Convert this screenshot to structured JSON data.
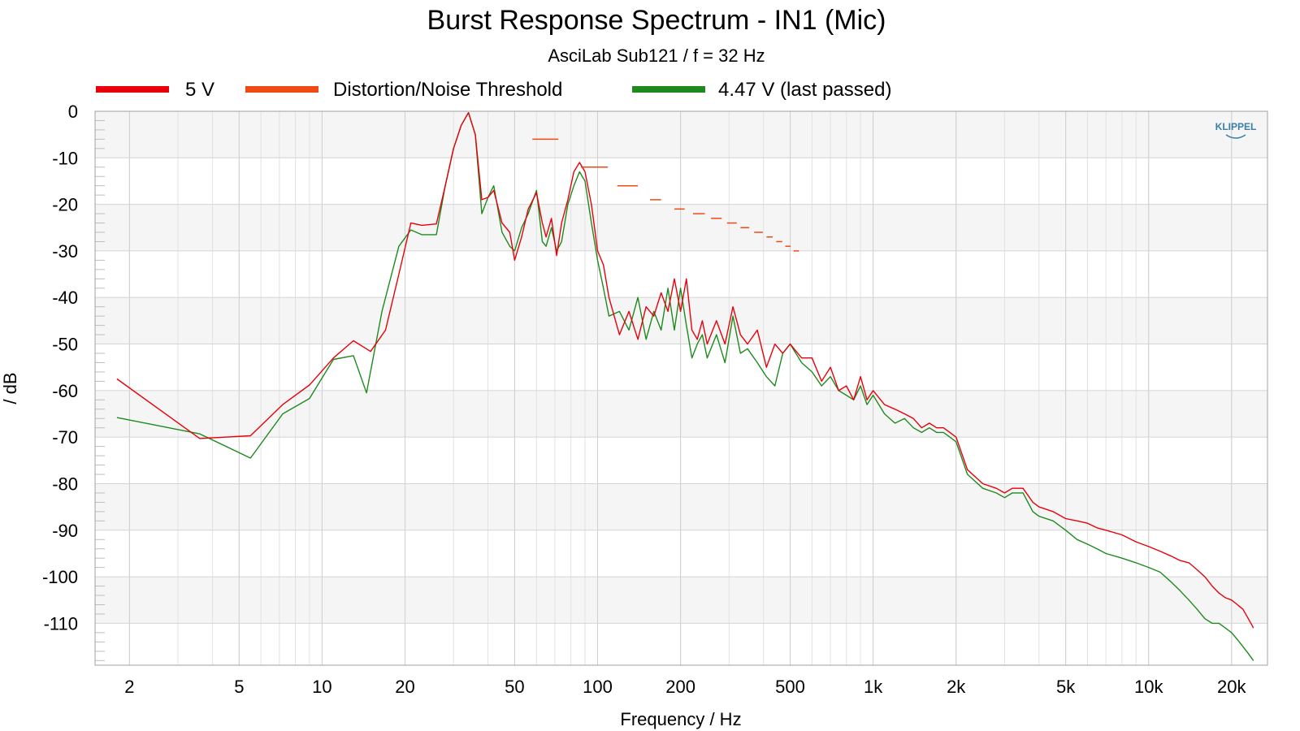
{
  "chart_data": {
    "type": "line",
    "title": "Burst Response Spectrum - IN1 (Mic)",
    "subtitle": "AsciLab Sub121 / f = 32 Hz",
    "xlabel": "Frequency / Hz",
    "ylabel": "/ dB",
    "xscale": "log",
    "xlim": [
      1.5,
      27000
    ],
    "ylim": [
      -119,
      0
    ],
    "xticks": [
      2,
      5,
      10,
      20,
      50,
      100,
      200,
      500,
      1000,
      2000,
      5000,
      10000,
      20000
    ],
    "xtick_labels": [
      "2",
      "5",
      "10",
      "20",
      "50",
      "100",
      "200",
      "500",
      "1k",
      "2k",
      "5k",
      "10k",
      "20k"
    ],
    "yticks": [
      0,
      -10,
      -20,
      -30,
      -40,
      -50,
      -60,
      -70,
      -80,
      -90,
      -100,
      -110
    ],
    "ytick_labels": [
      "0",
      "-10",
      "-20",
      "-30",
      "-40",
      "-50",
      "-60",
      "-70",
      "-80",
      "-90",
      "-100",
      "-110"
    ],
    "grid": true,
    "legend_position": "top",
    "watermark": "KLIPPEL",
    "series": [
      {
        "name": "5 V",
        "color": "#e8000b",
        "x": [
          1.8,
          3.6,
          5.5,
          7.2,
          9,
          11,
          13,
          15,
          17,
          19,
          21,
          23,
          26,
          28,
          30,
          32,
          34,
          36,
          38,
          40,
          42,
          45,
          48,
          50,
          53,
          56,
          60,
          63,
          65,
          68,
          71,
          74,
          78,
          82,
          86,
          90,
          95,
          100,
          105,
          110,
          120,
          130,
          140,
          150,
          160,
          170,
          180,
          190,
          200,
          210,
          220,
          230,
          240,
          250,
          270,
          290,
          310,
          330,
          350,
          380,
          410,
          440,
          470,
          500,
          550,
          600,
          650,
          700,
          750,
          800,
          850,
          900,
          950,
          1000,
          1100,
          1200,
          1300,
          1400,
          1500,
          1600,
          1700,
          1800,
          1900,
          2000,
          2200,
          2500,
          2800,
          3000,
          3200,
          3500,
          3800,
          4000,
          4500,
          5000,
          5500,
          6000,
          6500,
          7000,
          8000,
          9000,
          10000,
          11000,
          12000,
          13000,
          14000,
          15000,
          16000,
          17000,
          18000,
          19000,
          20000,
          21000,
          22000,
          23000,
          24000
        ],
        "values": [
          -57.5,
          -70.3,
          -69.7,
          -63,
          -58.8,
          -53,
          -49.3,
          -51.6,
          -47,
          -35,
          -24,
          -24.5,
          -24.2,
          -16,
          -8,
          -3,
          -0.3,
          -5,
          -19,
          -18.5,
          -17,
          -24,
          -26,
          -32,
          -27,
          -21,
          -17.5,
          -24,
          -27,
          -23,
          -31,
          -24,
          -19,
          -13,
          -11,
          -13,
          -20,
          -30,
          -33,
          -40,
          -48,
          -43,
          -49,
          -42,
          -44,
          -39,
          -43,
          -36,
          -43,
          -36,
          -47,
          -49,
          -45,
          -50,
          -45,
          -50,
          -42,
          -48,
          -50,
          -47,
          -55,
          -50,
          -52,
          -50,
          -53,
          -53,
          -58,
          -55,
          -60,
          -59,
          -62,
          -57,
          -62,
          -60,
          -63,
          -64,
          -65,
          -66,
          -68,
          -67,
          -68,
          -68,
          -69,
          -70,
          -77,
          -80,
          -81,
          -82,
          -81,
          -81,
          -84,
          -85,
          -86,
          -87.5,
          -88,
          -88.5,
          -89.5,
          -90,
          -91,
          -92.5,
          -93.5,
          -94.5,
          -95.5,
          -96.5,
          -97,
          -98.5,
          -100,
          -102,
          -103.5,
          -104.5,
          -105,
          -106,
          -107,
          -109,
          -111
        ]
      },
      {
        "name": "Distortion/Noise Threshold",
        "color": "#f04a14",
        "segments": [
          {
            "x": [
              58,
              72
            ],
            "y": -6
          },
          {
            "x": [
              87,
              109
            ],
            "y": -12
          },
          {
            "x": [
              118,
              140
            ],
            "y": -16
          },
          {
            "x": [
              155,
              170
            ],
            "y": -19
          },
          {
            "x": [
              190,
              207
            ],
            "y": -21
          },
          {
            "x": [
              222,
              245
            ],
            "y": -22
          },
          {
            "x": [
              258,
              282
            ],
            "y": -23
          },
          {
            "x": [
              295,
              320
            ],
            "y": -24
          },
          {
            "x": [
              330,
              355
            ],
            "y": -25
          },
          {
            "x": [
              370,
              398
            ],
            "y": -26
          },
          {
            "x": [
              410,
              432
            ],
            "y": -27
          },
          {
            "x": [
              445,
              468
            ],
            "y": -28
          },
          {
            "x": [
              480,
              502
            ],
            "y": -29
          },
          {
            "x": [
              515,
              538
            ],
            "y": -30
          }
        ]
      },
      {
        "name": "4.47 V (last passed)",
        "color": "#1e8a1e",
        "x": [
          1.8,
          3.6,
          5.5,
          7.2,
          9,
          11,
          13,
          14.5,
          16.5,
          19,
          21,
          23,
          26,
          28,
          30,
          32,
          34,
          36,
          38,
          40,
          42,
          45,
          48,
          50,
          53,
          56,
          60,
          63,
          65,
          68,
          71,
          74,
          78,
          82,
          86,
          90,
          95,
          100,
          105,
          110,
          120,
          130,
          140,
          150,
          160,
          170,
          180,
          190,
          200,
          210,
          220,
          230,
          240,
          250,
          270,
          290,
          310,
          330,
          350,
          380,
          410,
          440,
          470,
          500,
          550,
          600,
          650,
          700,
          750,
          800,
          850,
          900,
          950,
          1000,
          1100,
          1200,
          1300,
          1400,
          1500,
          1600,
          1700,
          1800,
          1900,
          2000,
          2200,
          2500,
          2800,
          3000,
          3200,
          3500,
          3800,
          4000,
          4500,
          5000,
          5500,
          6000,
          6500,
          7000,
          8000,
          9000,
          10000,
          11000,
          12000,
          13000,
          14000,
          15000,
          16000,
          17000,
          18000,
          19000,
          20000,
          21000,
          22000,
          23000,
          24000
        ],
        "values": [
          -65.8,
          -69.3,
          -74.5,
          -65,
          -61.7,
          -53.3,
          -52.5,
          -60.5,
          -43,
          -29,
          -25.5,
          -26.5,
          -26.5,
          -16,
          -8,
          -3,
          -0.3,
          -5,
          -22,
          -18.5,
          -16,
          -26,
          -29,
          -30,
          -25,
          -22,
          -17,
          -28,
          -29,
          -25,
          -30,
          -28,
          -20,
          -16,
          -13,
          -15,
          -24,
          -32,
          -38,
          -44,
          -43,
          -47,
          -40,
          -49,
          -43,
          -47,
          -38,
          -47,
          -38,
          -46,
          -53,
          -50,
          -48,
          -53,
          -48,
          -54,
          -44,
          -52,
          -51,
          -54,
          -57,
          -59,
          -52,
          -50,
          -54,
          -56,
          -59,
          -57,
          -60,
          -61,
          -62,
          -59,
          -63,
          -61,
          -65,
          -67,
          -66,
          -68,
          -69,
          -68,
          -69,
          -69,
          -70,
          -71,
          -78,
          -81,
          -82,
          -83,
          -82,
          -82,
          -86,
          -87,
          -88,
          -90,
          -92,
          -93,
          -94,
          -95,
          -96,
          -97,
          -98,
          -99,
          -101,
          -103,
          -105,
          -107,
          -109,
          -110,
          -110,
          -111,
          -112,
          -113.5,
          -115,
          -116.5,
          -118
        ]
      }
    ]
  }
}
